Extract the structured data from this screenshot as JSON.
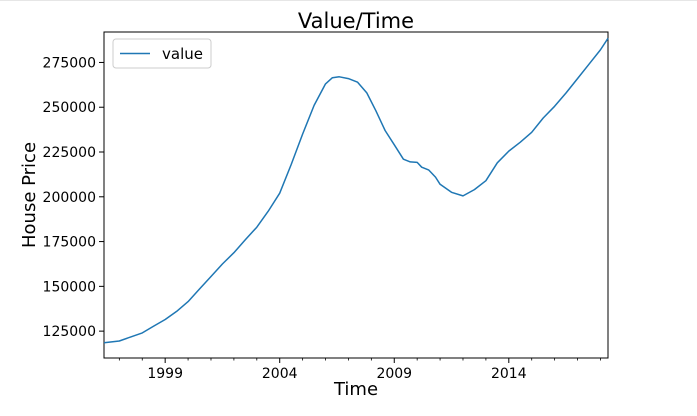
{
  "chart_data": {
    "type": "line",
    "title": "Value/Time",
    "xlabel": "Time",
    "ylabel": "House Price",
    "xlim": [
      1996.33,
      2018.33
    ],
    "ylim": [
      110000,
      292000
    ],
    "xticks": [
      1999,
      2004,
      2009,
      2014
    ],
    "xtick_labels": [
      "1999",
      "2004",
      "2009",
      "2014"
    ],
    "yticks": [
      125000,
      150000,
      175000,
      200000,
      225000,
      250000,
      275000
    ],
    "ytick_labels": [
      "125000",
      "150000",
      "175000",
      "200000",
      "225000",
      "250000",
      "275000"
    ],
    "grid": false,
    "legend": "top-left",
    "series": [
      {
        "name": "value",
        "color": "#1f77b4",
        "x": [
          1996.33,
          1997.0,
          1997.5,
          1998.0,
          1998.5,
          1999.0,
          1999.5,
          2000.0,
          2000.5,
          2001.0,
          2001.5,
          2002.0,
          2002.5,
          2003.0,
          2003.5,
          2004.0,
          2004.5,
          2005.0,
          2005.5,
          2006.0,
          2006.3,
          2006.6,
          2007.0,
          2007.4,
          2007.8,
          2008.2,
          2008.6,
          2009.0,
          2009.4,
          2009.7,
          2010.0,
          2010.2,
          2010.5,
          2010.8,
          2011.0,
          2011.5,
          2012.0,
          2012.5,
          2013.0,
          2013.5,
          2014.0,
          2014.5,
          2015.0,
          2015.5,
          2016.0,
          2016.5,
          2017.0,
          2017.5,
          2018.0,
          2018.33
        ],
        "y": [
          118500,
          119500,
          121800,
          124000,
          127800,
          131500,
          136000,
          141500,
          148500,
          155500,
          162500,
          168800,
          176000,
          183000,
          192000,
          202000,
          218000,
          235000,
          251000,
          263000,
          266500,
          267000,
          266000,
          264000,
          258000,
          248000,
          237000,
          229000,
          221000,
          219500,
          219200,
          216500,
          215000,
          211000,
          207000,
          202500,
          200500,
          204000,
          209000,
          219000,
          225500,
          230500,
          236000,
          244000,
          250500,
          258000,
          266000,
          274000,
          282000,
          288500
        ]
      }
    ]
  }
}
